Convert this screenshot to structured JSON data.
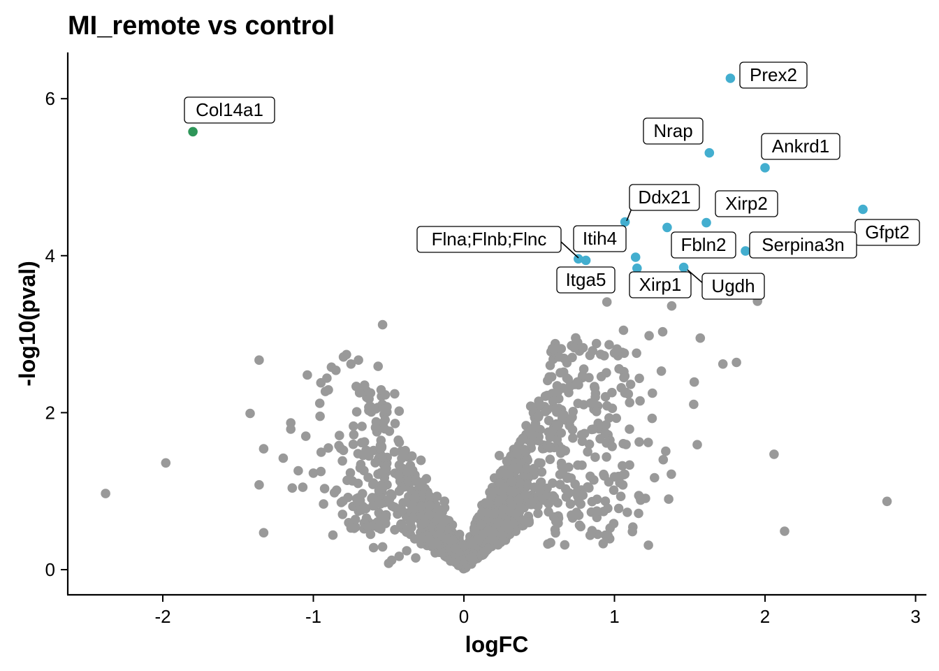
{
  "chart_data": {
    "type": "scatter",
    "title": "MI_remote vs control",
    "xlabel": "logFC",
    "ylabel": "-log10(pval)",
    "xlim": [
      -2.6,
      3.05
    ],
    "ylim": [
      -0.32,
      6.6
    ],
    "x_ticks": [
      -2,
      -1,
      0,
      1,
      2,
      3
    ],
    "y_ticks": [
      0,
      2,
      4,
      6
    ],
    "x_tick_labels": [
      "-2",
      "-1",
      "0",
      "1",
      "2",
      "3"
    ],
    "y_tick_labels": [
      "0",
      "2",
      "4",
      "6"
    ],
    "grid": false,
    "legend": "none",
    "colors": {
      "not_significant": "#999999",
      "up": "#43aecf",
      "down": "#2e9659"
    },
    "highlighted": [
      {
        "gene": "Prex2",
        "x": 1.77,
        "y": 6.26,
        "group": "up"
      },
      {
        "gene": "Col14a1",
        "x": -1.8,
        "y": 5.58,
        "group": "down"
      },
      {
        "gene": "Nrap",
        "x": 1.63,
        "y": 5.31,
        "group": "up"
      },
      {
        "gene": "Ankrd1",
        "x": 2.0,
        "y": 5.12,
        "group": "up"
      },
      {
        "gene": "Ddx21",
        "x": 1.07,
        "y": 4.43,
        "group": "up"
      },
      {
        "gene": "Xirp2",
        "x": 1.61,
        "y": 4.42,
        "group": "up"
      },
      {
        "gene": "Gfpt2",
        "x": 2.65,
        "y": 4.59,
        "group": "up"
      },
      {
        "gene": "Itih4",
        "x": 1.35,
        "y": 4.36,
        "group": "up"
      },
      {
        "gene": "Fbln2",
        "x": 1.14,
        "y": 3.98,
        "group": "up"
      },
      {
        "gene": "Serpina3n",
        "x": 1.87,
        "y": 4.06,
        "group": "up"
      },
      {
        "gene": "Flna;Flnb;Flnc",
        "x": 0.76,
        "y": 3.96,
        "group": "up"
      },
      {
        "gene": "Itga5",
        "x": 0.81,
        "y": 3.94,
        "group": "up"
      },
      {
        "gene": "Xirp1",
        "x": 1.15,
        "y": 3.84,
        "group": "up"
      },
      {
        "gene": "Ugdh",
        "x": 1.46,
        "y": 3.85,
        "group": "up"
      }
    ],
    "scattered_background": [
      [
        -2.38,
        0.97
      ],
      [
        -1.98,
        1.36
      ],
      [
        -1.42,
        1.99
      ],
      [
        -1.36,
        2.67
      ],
      [
        -1.36,
        1.08
      ],
      [
        -1.33,
        0.47
      ],
      [
        -1.33,
        1.54
      ],
      [
        -1.2,
        1.42
      ],
      [
        -1.15,
        1.87
      ],
      [
        -1.15,
        1.79
      ],
      [
        -1.14,
        1.04
      ],
      [
        -1.1,
        1.26
      ],
      [
        -1.07,
        1.05
      ],
      [
        -1.05,
        1.7
      ],
      [
        -1.04,
        2.48
      ],
      [
        -1.0,
        1.23
      ],
      [
        -0.95,
        2.38
      ],
      [
        -0.92,
        2.27
      ],
      [
        -0.91,
        2.44
      ],
      [
        -0.9,
        2.29
      ],
      [
        -0.88,
        2.58
      ],
      [
        -0.87,
        0.44
      ],
      [
        -0.85,
        2.54
      ],
      [
        -0.8,
        2.71
      ],
      [
        -0.78,
        2.74
      ],
      [
        -0.75,
        2.62
      ],
      [
        -0.9,
        1.55
      ],
      [
        -0.95,
        1.25
      ],
      [
        -0.83,
        1.58
      ],
      [
        -0.8,
        1.52
      ],
      [
        -0.7,
        2.67
      ],
      [
        -0.66,
        2.35
      ],
      [
        -0.62,
        2.25
      ],
      [
        -0.57,
        2.59
      ],
      [
        -0.55,
        2.29
      ],
      [
        -0.54,
        3.12
      ],
      [
        -0.52,
        2.05
      ],
      [
        -0.46,
        2.24
      ],
      [
        -0.43,
        2.02
      ],
      [
        -0.86,
        0.98
      ],
      [
        -0.77,
        0.92
      ],
      [
        -0.68,
        0.76
      ],
      [
        -0.62,
        0.45
      ],
      [
        -0.6,
        0.28
      ],
      [
        -0.54,
        0.29
      ],
      [
        -0.48,
        0.12
      ],
      [
        -0.43,
        0.17
      ],
      [
        -0.38,
        0.24
      ],
      [
        -0.32,
        0.15
      ],
      [
        -0.5,
        0.08
      ]
    ],
    "dense_cloud_note": "",
    "labels": [
      "Prex2",
      "Col14a1",
      "Nrap",
      "Ankrd1",
      "Ddx21",
      "Xirp2",
      "Gfpt2",
      "Itih4",
      "Fbln2",
      "Serpina3n",
      "Flna;Flnb;Flnc",
      "Itga5",
      "Xirp1",
      "Ugdh"
    ]
  }
}
